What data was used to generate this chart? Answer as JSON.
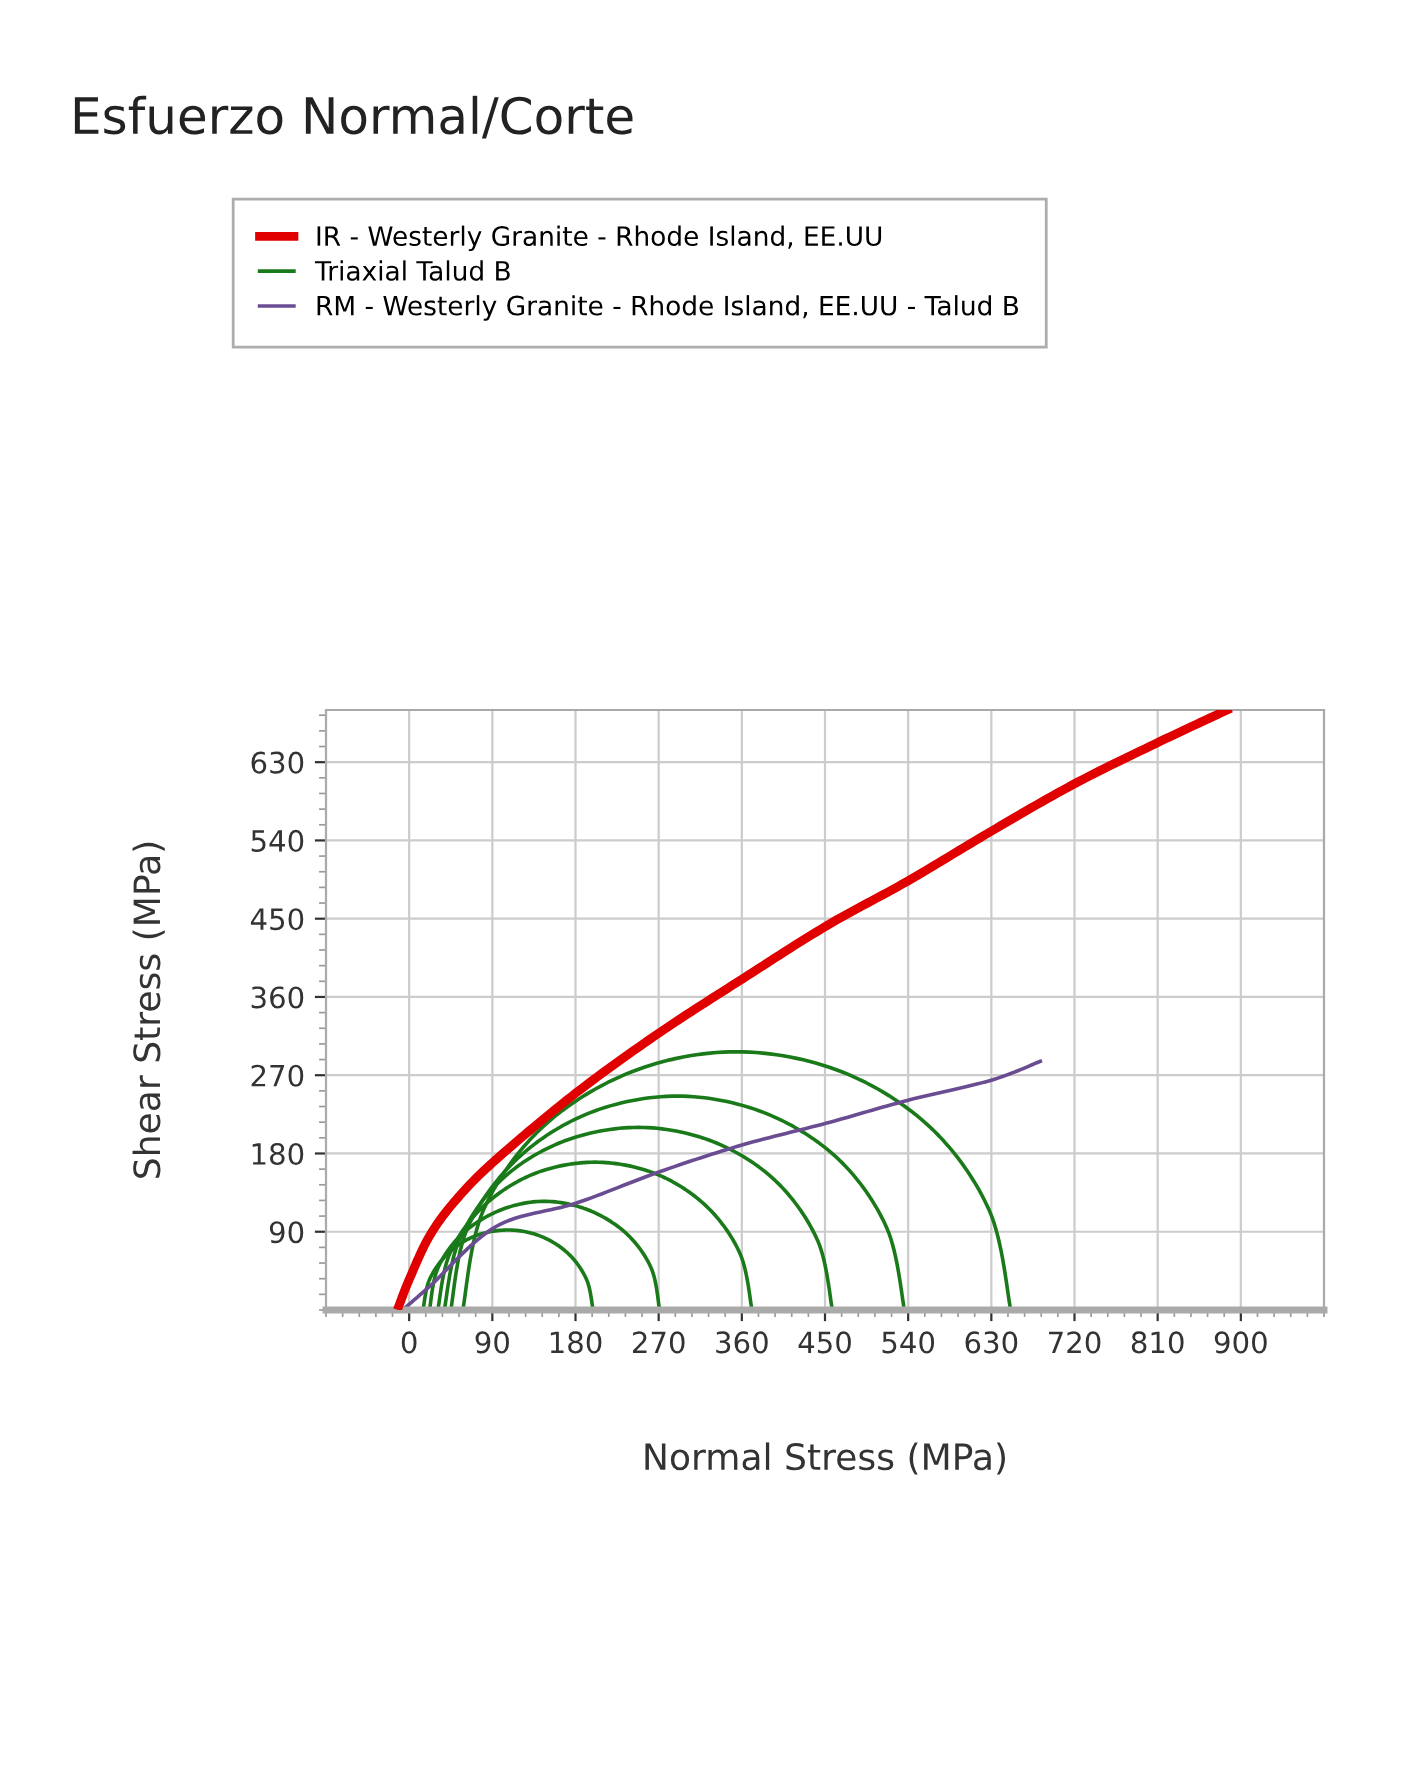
{
  "chart_data": {
    "type": "line",
    "title": "Esfuerzo Normal/Corte",
    "xlabel": "Normal Stress (MPa)",
    "ylabel": "Shear Stress (MPa)",
    "xlim": [
      -90,
      990
    ],
    "ylim": [
      0,
      690
    ],
    "xticks": [
      0,
      90,
      180,
      270,
      360,
      450,
      540,
      630,
      720,
      810,
      900
    ],
    "yticks": [
      90,
      180,
      270,
      360,
      450,
      540,
      630
    ],
    "grid": true,
    "legend": "top",
    "marker": "none",
    "line_style": "solid",
    "series": [
      {
        "name": "IR - Westerly Granite - Rhode Island, EE.UU",
        "color": "#e00000",
        "x": [
          -11,
          0,
          22,
          51,
          94,
          181,
          271,
          361,
          452,
          539,
          629,
          718,
          807,
          885
        ],
        "values": [
          5,
          35,
          85,
          127,
          173,
          250,
          319,
          381,
          442,
          493,
          550,
          604,
          651,
          690
        ]
      },
      {
        "name": "Triaxial Talud B",
        "color": "#1a7a1a",
        "x": [
          199,
          192,
          172,
          142,
          107,
          71,
          42,
          22,
          15
        ],
        "values": [
          0,
          35,
          65,
          85,
          92,
          85,
          65,
          35,
          0
        ]
      },
      {
        "color": "#1a7a1a",
        "x": [
          271,
          262,
          235,
          194,
          146,
          99,
          58,
          31,
          22
        ],
        "values": [
          0,
          48,
          88,
          115,
          125,
          115,
          88,
          48,
          0
        ]
      },
      {
        "color": "#1a7a1a",
        "x": [
          371,
          358,
          321,
          266,
          201,
          136,
          81,
          44,
          31
        ],
        "values": [
          0,
          65,
          120,
          157,
          170,
          157,
          120,
          65,
          0
        ]
      },
      {
        "color": "#1a7a1a",
        "x": [
          458,
          442,
          396,
          328,
          248,
          167,
          99,
          54,
          38
        ],
        "values": [
          0,
          80,
          149,
          194,
          210,
          194,
          149,
          80,
          0
        ]
      },
      {
        "color": "#1a7a1a",
        "x": [
          536,
          517,
          464,
          384,
          290,
          196,
          117,
          63,
          45
        ],
        "values": [
          0,
          94,
          174,
          227,
          246,
          227,
          174,
          94,
          0
        ]
      },
      {
        "color": "#1a7a1a",
        "x": [
          651,
          628,
          564,
          468,
          354,
          241,
          144,
          80,
          58
        ],
        "values": [
          0,
          114,
          210,
          274,
          297,
          274,
          210,
          114,
          0
        ]
      },
      {
        "name": "RM - Westerly Granite - Rhode Island, EE.UU - Talud B",
        "color": "#6a4c93",
        "x": [
          -4,
          22,
          94,
          181,
          271,
          361,
          452,
          539,
          629,
          683
        ],
        "values": [
          3,
          27,
          96,
          123,
          159,
          190,
          215,
          241,
          264,
          286
        ]
      }
    ]
  }
}
